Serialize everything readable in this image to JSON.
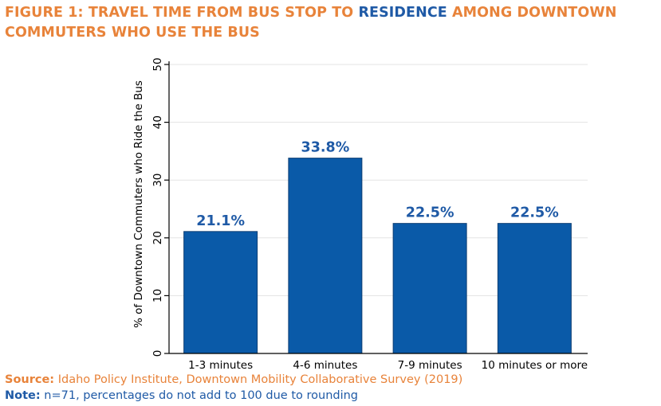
{
  "title": {
    "part1": "FIGURE 1: TRAVEL TIME FROM BUS STOP TO ",
    "highlight": "RESIDENCE",
    "part2": " AMONG DOWNTOWN COMMUTERS WHO USE THE BUS"
  },
  "colors": {
    "bar": "#0A5AA8",
    "label": "#1F5AA6",
    "title_accent": "#E8833A",
    "grid": "#E3E3E3",
    "axis": "#000000"
  },
  "chart_data": {
    "type": "bar",
    "categories": [
      "1-3 minutes",
      "4-6 minutes",
      "7-9 minutes",
      "10 minutes or more"
    ],
    "values": [
      21.1,
      33.8,
      22.5,
      22.5
    ],
    "data_labels": [
      "21.1%",
      "33.8%",
      "22.5%",
      "22.5%"
    ],
    "ylabel": "% of Downtown Commuters who Ride the Bus",
    "xlabel": "",
    "ylim": [
      0,
      50
    ],
    "yticks": [
      0,
      10,
      20,
      30,
      40,
      50
    ],
    "grid": true,
    "legend": "none"
  },
  "footer": {
    "source_label": "Source:",
    "source_text": " Idaho Policy Institute, Downtown Mobility Collaborative Survey (2019)",
    "note_label": "Note:",
    "note_text": " n=71, percentages do not add to 100 due to rounding"
  }
}
